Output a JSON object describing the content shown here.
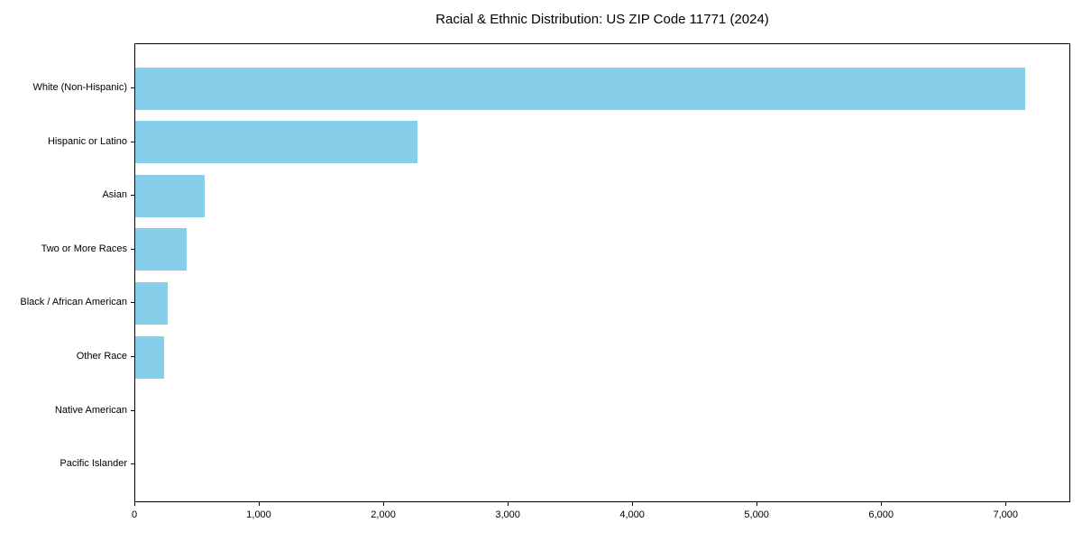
{
  "chart_data": {
    "type": "bar",
    "orientation": "horizontal",
    "title": "Racial & Ethnic Distribution: US ZIP Code 11771 (2024)",
    "categories": [
      "White (Non-Hispanic)",
      "Hispanic or Latino",
      "Asian",
      "Two or More Races",
      "Black / African American",
      "Other Race",
      "Native American",
      "Pacific Islander"
    ],
    "values": [
      7150,
      2270,
      560,
      415,
      260,
      230,
      0,
      0
    ],
    "bar_color": "#87CEEB",
    "axis_color": "#000000",
    "background_color": "#ffffff",
    "xlim": [
      0,
      7520
    ],
    "x_tick_values": [
      0,
      1000,
      2000,
      3000,
      4000,
      5000,
      6000,
      7000
    ],
    "x_tick_labels": [
      "0",
      "1,000",
      "2,000",
      "3,000",
      "4,000",
      "5,000",
      "6,000",
      "7,000"
    ],
    "xlabel": "",
    "ylabel": "",
    "grid": false,
    "legend": null
  }
}
